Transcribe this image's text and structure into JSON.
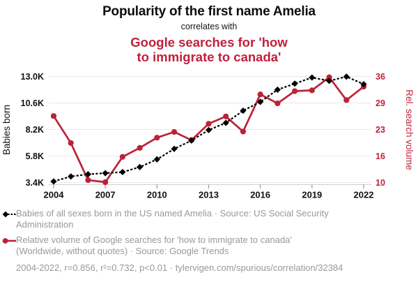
{
  "header": {
    "title": "Popularity of the first name Amelia",
    "connector": "correlates with",
    "subtitle_line1": "Google searches for 'how",
    "subtitle_line2": "to immigrate to canada'"
  },
  "colors": {
    "accent_red": "#c1203c",
    "series_red": "#ba2336",
    "series_black": "#000000",
    "legend_gray": "#999999",
    "gridline": "#e8e8e8",
    "axis_line": "#cfcfcf",
    "tick_mark": "#999999",
    "axis_text": "#111111"
  },
  "chart_data": {
    "type": "line",
    "x": [
      2004,
      2005,
      2006,
      2007,
      2008,
      2009,
      2010,
      2011,
      2012,
      2013,
      2014,
      2015,
      2016,
      2017,
      2018,
      2019,
      2020,
      2021,
      2022
    ],
    "x_ticks": [
      2004,
      2007,
      2010,
      2013,
      2016,
      2019,
      2022
    ],
    "series": [
      {
        "name": "Babies of all sexes born in the US named Amelia",
        "axis": "left",
        "marker": "diamond",
        "line": "dashed",
        "values": [
          3500,
          3950,
          4150,
          4250,
          4350,
          4800,
          5500,
          6450,
          7200,
          8150,
          8800,
          9900,
          10700,
          11800,
          12350,
          12900,
          12600,
          12980,
          12300
        ]
      },
      {
        "name": "Relative volume of Google searches for 'how to immigrate to canada'",
        "axis": "right",
        "marker": "circle",
        "line": "solid",
        "values": [
          26.3,
          19.7,
          10.6,
          10.1,
          16.3,
          18.5,
          21.0,
          22.4,
          20.4,
          24.4,
          26.2,
          22.5,
          31.6,
          29.4,
          32.4,
          32.6,
          35.8,
          30.2,
          33.5
        ]
      }
    ],
    "left_axis": {
      "label": "Babies born",
      "ticks": [
        "3.4K",
        "5.8K",
        "8.2K",
        "10.6K",
        "13.0K"
      ],
      "tick_values": [
        3400,
        5800,
        8200,
        10600,
        13000
      ],
      "range": [
        3400,
        13000
      ]
    },
    "right_axis": {
      "label": "Rel. search volume",
      "ticks": [
        "10",
        "16",
        "23",
        "29",
        "36"
      ],
      "range": [
        10,
        36
      ]
    },
    "grid": true,
    "legend_position": "below"
  },
  "legend": {
    "series1": {
      "marker": "black-diamond-dashed-line",
      "lines": [
        "Babies of all sexes born in the US named Amelia · Source: US Social Security",
        "Administration"
      ]
    },
    "series2": {
      "marker": "red-circle-solid-line",
      "lines": [
        "Relative volume of Google searches for 'how to immigrate to canada'",
        "(Worldwide, without quotes) · Source: Google Trends"
      ]
    }
  },
  "footer": {
    "stats": "2004-2022, r=0.856, r²=0.732, p<0.01 · tylervigen.com/spurious/correlation/32384"
  }
}
